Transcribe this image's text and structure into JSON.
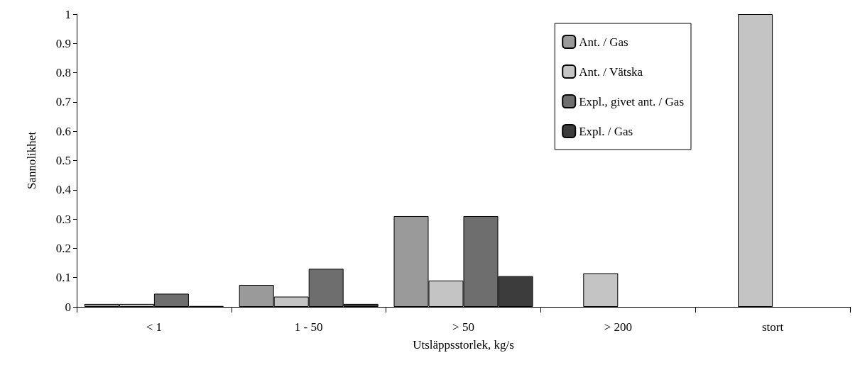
{
  "chart_data": {
    "type": "bar",
    "xlabel": "Utsläppsstorlek, kg/s",
    "ylabel": "Sannolikhet",
    "categories": [
      "< 1",
      "1 - 50",
      "> 50",
      "> 200",
      "stort"
    ],
    "series": [
      {
        "name": "Ant. / Gas",
        "color": "#9a9a9a",
        "values": [
          0.01,
          0.075,
          0.31,
          null,
          null
        ]
      },
      {
        "name": "Ant. / Vätska",
        "color": "#c4c4c4",
        "values": [
          0.01,
          0.035,
          0.09,
          0.115,
          1.0
        ]
      },
      {
        "name": "Expl., givet ant. / Gas",
        "color": "#6e6e6e",
        "values": [
          0.045,
          0.13,
          0.31,
          null,
          null
        ]
      },
      {
        "name": "Expl. / Gas",
        "color": "#3c3c3c",
        "values": [
          0.003,
          0.01,
          0.105,
          null,
          null
        ]
      }
    ],
    "ylim": [
      0,
      1
    ],
    "yticks": [
      0,
      0.1,
      0.2,
      0.3,
      0.4,
      0.5,
      0.6,
      0.7,
      0.8,
      0.9,
      1
    ],
    "grid": false,
    "legend": "top right"
  }
}
